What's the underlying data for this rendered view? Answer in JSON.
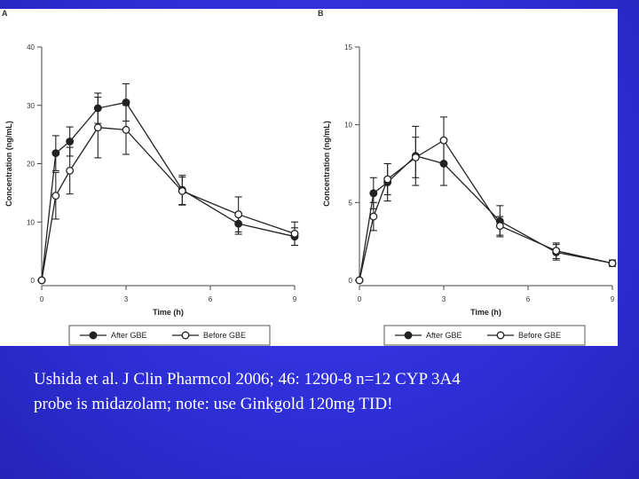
{
  "caption": {
    "line1": "Ushida et al. J Clin Pharmcol  2006; 46: 1290-8  n=12  CYP 3A4",
    "line2": "probe is midazolam;  note: use Ginkgold 120mg TID!"
  },
  "colors": {
    "background": "#2f2fd8",
    "figure_bg": "#ffffff",
    "series_line": "#222222"
  },
  "chart_data": [
    {
      "panel_label": "A",
      "type": "line",
      "xlabel": "Time (h)",
      "ylabel": "Concentration (ng/mL)",
      "xlim": [
        0,
        9
      ],
      "ylim": [
        0,
        40
      ],
      "xticks": [
        0,
        3,
        6,
        9
      ],
      "yticks": [
        0,
        10,
        20,
        30,
        40
      ],
      "grid": false,
      "legend_position": "bottom",
      "series": [
        {
          "name": "After GBE",
          "marker": "filled-circle",
          "x": [
            0,
            0.5,
            1,
            2,
            3,
            5,
            7,
            9
          ],
          "y": [
            0,
            21.8,
            23.8,
            29.5,
            30.5,
            15.5,
            9.7,
            7.5
          ],
          "err": [
            0,
            3,
            2.5,
            2.6,
            3.2,
            2.5,
            1.8,
            1.5
          ]
        },
        {
          "name": "Before GBE",
          "marker": "open-circle",
          "x": [
            0,
            0.5,
            1,
            2,
            3,
            5,
            7,
            9
          ],
          "y": [
            0,
            14.5,
            18.8,
            26.2,
            25.8,
            15.3,
            11.3,
            8.0
          ],
          "err": [
            0,
            4,
            4,
            5.2,
            4.2,
            2.4,
            3,
            2
          ]
        }
      ]
    },
    {
      "panel_label": "B",
      "type": "line",
      "xlabel": "Time (h)",
      "ylabel": "Concentration (ng/mL)",
      "xlim": [
        0,
        9
      ],
      "ylim": [
        0,
        15
      ],
      "xticks": [
        0,
        3,
        6,
        9
      ],
      "yticks": [
        0,
        5,
        10,
        15
      ],
      "grid": false,
      "legend_position": "bottom",
      "series": [
        {
          "name": "After GBE",
          "marker": "filled-circle",
          "x": [
            0,
            0.5,
            1,
            2,
            3,
            5,
            7,
            9
          ],
          "y": [
            0,
            5.6,
            6.3,
            8.0,
            7.5,
            3.8,
            1.8,
            1.1
          ],
          "err": [
            0,
            1,
            1.2,
            1.9,
            1.4,
            1,
            0.5,
            0.2
          ]
        },
        {
          "name": "Before GBE",
          "marker": "open-circle",
          "x": [
            0,
            0.5,
            1,
            2,
            3,
            5,
            7,
            9
          ],
          "y": [
            0,
            4.1,
            6.5,
            7.9,
            9.0,
            3.5,
            1.9,
            1.1
          ],
          "err": [
            0,
            0.9,
            1,
            1.3,
            1.5,
            0.6,
            0.5,
            0.2
          ]
        }
      ]
    }
  ]
}
